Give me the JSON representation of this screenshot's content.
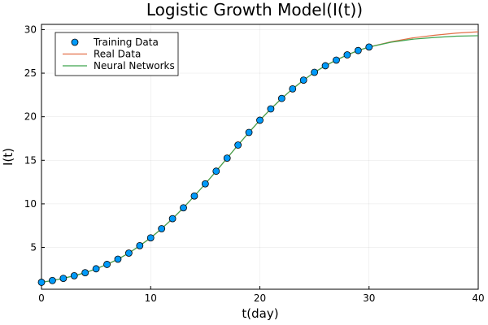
{
  "chart_data": {
    "type": "line",
    "title": "Logistic Growth Model(I(t))",
    "xlabel": "t(day)",
    "ylabel": "I(t)",
    "xlim": [
      0,
      40
    ],
    "ylim": [
      0.2,
      30.6
    ],
    "xticks": [
      0,
      10,
      20,
      30,
      40
    ],
    "yticks": [
      5,
      10,
      15,
      20,
      25,
      30
    ],
    "grid": true,
    "legend_position": "top-left",
    "colors": {
      "training": "#009AFA",
      "real": "#E26F46",
      "neural": "#3DA44D"
    },
    "series": [
      {
        "name": "Training Data",
        "kind": "scatter",
        "x": [
          0,
          1,
          2,
          3,
          4,
          5,
          6,
          7,
          8,
          9,
          10,
          11,
          12,
          13,
          14,
          15,
          16,
          17,
          18,
          19,
          20,
          21,
          22,
          23,
          24,
          25,
          26,
          27,
          28,
          29,
          30
        ],
        "y": [
          1.0,
          1.2,
          1.45,
          1.75,
          2.1,
          2.55,
          3.05,
          3.65,
          4.35,
          5.2,
          6.1,
          7.15,
          8.3,
          9.55,
          10.9,
          12.3,
          13.75,
          15.25,
          16.75,
          18.2,
          19.6,
          20.9,
          22.1,
          23.2,
          24.2,
          25.1,
          25.85,
          26.5,
          27.1,
          27.6,
          28.0
        ]
      },
      {
        "name": "Real Data",
        "kind": "line",
        "x": [
          0,
          1,
          2,
          3,
          4,
          5,
          6,
          7,
          8,
          9,
          10,
          11,
          12,
          13,
          14,
          15,
          16,
          17,
          18,
          19,
          20,
          21,
          22,
          23,
          24,
          25,
          26,
          27,
          28,
          29,
          30,
          32,
          34,
          36,
          38,
          40
        ],
        "y": [
          1.0,
          1.2,
          1.45,
          1.75,
          2.1,
          2.55,
          3.05,
          3.65,
          4.35,
          5.2,
          6.1,
          7.15,
          8.3,
          9.55,
          10.9,
          12.3,
          13.75,
          15.25,
          16.75,
          18.2,
          19.6,
          20.9,
          22.1,
          23.2,
          24.2,
          25.1,
          25.85,
          26.5,
          27.1,
          27.6,
          28.0,
          28.6,
          29.05,
          29.35,
          29.6,
          29.75
        ]
      },
      {
        "name": "Neural Networks",
        "kind": "line",
        "x": [
          0,
          1,
          2,
          3,
          4,
          5,
          6,
          7,
          8,
          9,
          10,
          11,
          12,
          13,
          14,
          15,
          16,
          17,
          18,
          19,
          20,
          21,
          22,
          23,
          24,
          25,
          26,
          27,
          28,
          29,
          30,
          32,
          34,
          36,
          38,
          40
        ],
        "y": [
          1.0,
          1.2,
          1.45,
          1.75,
          2.1,
          2.55,
          3.05,
          3.65,
          4.35,
          5.2,
          6.1,
          7.15,
          8.3,
          9.55,
          10.9,
          12.3,
          13.75,
          15.25,
          16.75,
          18.2,
          19.6,
          20.9,
          22.1,
          23.2,
          24.2,
          25.1,
          25.85,
          26.5,
          27.1,
          27.6,
          28.0,
          28.55,
          28.9,
          29.1,
          29.25,
          29.3
        ]
      }
    ]
  }
}
